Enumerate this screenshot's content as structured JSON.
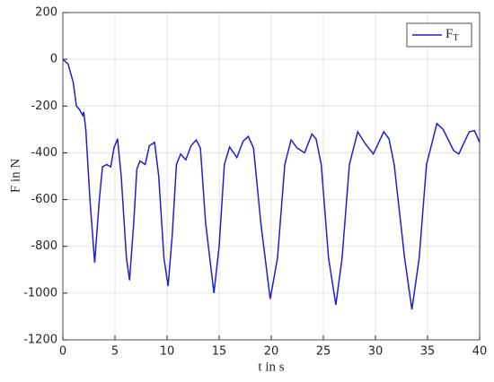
{
  "chart_data": {
    "type": "line",
    "xlabel": "t in s",
    "ylabel": "F in N",
    "xlim": [
      0,
      40
    ],
    "xticks": [
      0,
      5,
      10,
      15,
      20,
      25,
      30,
      35,
      40
    ],
    "ylim": [
      -1200,
      200
    ],
    "yticks": [
      -1200,
      -1000,
      -800,
      -600,
      -400,
      -200,
      0,
      200
    ],
    "grid": true,
    "legend": "northeast",
    "x": [
      0,
      0.5,
      1.0,
      1.3,
      1.6,
      1.9,
      2.0,
      2.2,
      2.6,
      3.05,
      3.5,
      3.8,
      4.2,
      4.6,
      4.9,
      5.25,
      5.6,
      6.1,
      6.4,
      6.8,
      7.1,
      7.4,
      7.9,
      8.3,
      8.8,
      9.2,
      9.7,
      10.1,
      10.5,
      10.9,
      11.3,
      11.8,
      12.3,
      12.8,
      13.2,
      13.7,
      14.5,
      15.0,
      15.5,
      16.0,
      16.7,
      17.3,
      17.8,
      18.3,
      19.0,
      19.9,
      20.6,
      21.3,
      21.9,
      22.5,
      23.2,
      23.9,
      24.3,
      24.8,
      25.5,
      26.2,
      26.8,
      27.5,
      28.3,
      29.0,
      29.8,
      30.8,
      31.3,
      31.8,
      32.8,
      33.5,
      34.2,
      34.9,
      35.9,
      36.5,
      37.5,
      38.0,
      39.0,
      39.5,
      40
    ],
    "series": [
      {
        "name": "F",
        "name_sub": "T",
        "color": "#1f1fd0",
        "values": [
          0,
          -20,
          -100,
          -200,
          -215,
          -240,
          -225,
          -300,
          -600,
          -870,
          -600,
          -460,
          -450,
          -460,
          -380,
          -340,
          -500,
          -850,
          -945,
          -700,
          -470,
          -435,
          -450,
          -370,
          -355,
          -500,
          -850,
          -970,
          -750,
          -450,
          -405,
          -430,
          -370,
          -345,
          -380,
          -700,
          -1000,
          -800,
          -450,
          -375,
          -420,
          -350,
          -330,
          -380,
          -700,
          -1025,
          -850,
          -450,
          -345,
          -380,
          -400,
          -320,
          -340,
          -450,
          -850,
          -1050,
          -850,
          -450,
          -310,
          -360,
          -405,
          -310,
          -340,
          -450,
          -850,
          -1070,
          -850,
          -450,
          -275,
          -300,
          -390,
          -405,
          -310,
          -305,
          -355
        ]
      }
    ]
  }
}
